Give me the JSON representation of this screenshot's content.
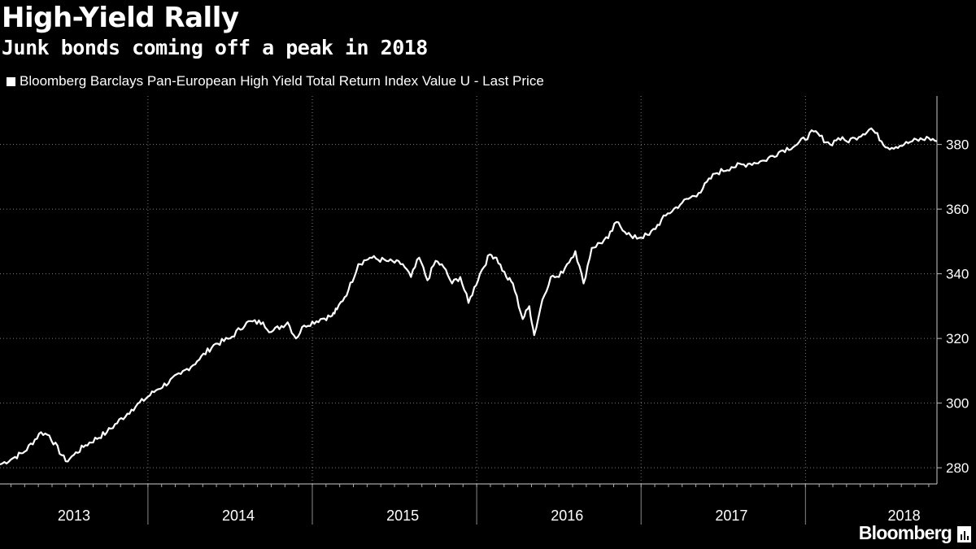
{
  "header": {
    "title": "High-Yield Rally",
    "subtitle": "Junk bonds coming off a peak in 2018"
  },
  "brand": {
    "name": "Bloomberg"
  },
  "colors": {
    "background": "#000000",
    "line": "#ffffff",
    "grid": "#7a7a7a"
  },
  "chart_data": {
    "type": "line",
    "title": "High-Yield Rally",
    "subtitle": "Junk bonds coming off a peak in 2018",
    "legend": {
      "position": "top-left",
      "entries": [
        "Bloomberg Barclays Pan-European High Yield Total Return Index Value U - Last Price"
      ]
    },
    "series": [
      {
        "name": "Bloomberg Barclays Pan-European High Yield Total Return Index Value U - Last Price",
        "x": [
          2012.6,
          2012.68,
          2012.75,
          2012.85,
          2012.9,
          2013.0,
          2013.05,
          2013.12,
          2013.25,
          2013.4,
          2013.55,
          2013.7,
          2013.8,
          2013.9,
          2014.0,
          2014.1,
          2014.2,
          2014.25,
          2014.35,
          2014.4,
          2014.45,
          2014.55,
          2014.62,
          2014.65,
          2014.72,
          2014.78,
          2014.85,
          2014.95,
          2015.05,
          2015.1,
          2015.15,
          2015.2,
          2015.25,
          2015.3,
          2015.35,
          2015.4,
          2015.45,
          2015.52,
          2015.58,
          2015.62,
          2015.68,
          2015.72,
          2015.78,
          2015.82,
          2015.85,
          2015.9,
          2015.95,
          2016.0,
          2016.05,
          2016.1,
          2016.15,
          2016.2,
          2016.3,
          2016.35,
          2016.45,
          2016.55,
          2016.65,
          2016.75,
          2016.85,
          2016.95,
          2017.05,
          2017.15,
          2017.25,
          2017.35,
          2017.45,
          2017.55,
          2017.65,
          2017.7,
          2017.75,
          2017.8,
          2017.9,
          2018.0,
          2018.1,
          2018.15,
          2018.25,
          2018.3
        ],
        "values": [
          281,
          283,
          285,
          291,
          290,
          282,
          284,
          287,
          291,
          298,
          304,
          309,
          313,
          318,
          320,
          325,
          325,
          322,
          325,
          320,
          324,
          326,
          327,
          329,
          335,
          343,
          345,
          344,
          343,
          339,
          345,
          338,
          344,
          342,
          337,
          339,
          331,
          340,
          346,
          345,
          339,
          337,
          326,
          330,
          321,
          332,
          339,
          339,
          343,
          347,
          337,
          348,
          351,
          356,
          351,
          352,
          358,
          362,
          365,
          371,
          373,
          374,
          375,
          378,
          380,
          384,
          380,
          382,
          381,
          382,
          385,
          379,
          380,
          381,
          382,
          381
        ]
      }
    ],
    "xlabel": "",
    "ylabel": "",
    "xlim": [
      2012.6,
      2018.3
    ],
    "ylim": [
      275,
      395
    ],
    "x_ticks": [
      {
        "label": "2013",
        "center": 2013.05
      },
      {
        "label": "2014",
        "center": 2014.05
      },
      {
        "label": "2015",
        "center": 2015.05
      },
      {
        "label": "2016",
        "center": 2016.05
      },
      {
        "label": "2017",
        "center": 2017.05
      },
      {
        "label": "2018",
        "center": 2018.1
      }
    ],
    "year_boundaries": [
      2013.5,
      2014.5,
      2015.5,
      2016.5,
      2017.5
    ],
    "y_ticks": [
      280,
      300,
      320,
      340,
      360,
      380
    ],
    "grid": true,
    "y_axis_position": "right"
  }
}
